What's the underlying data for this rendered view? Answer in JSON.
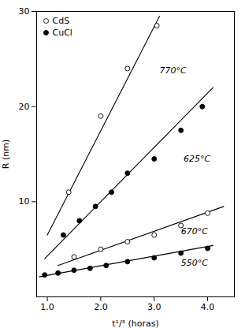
{
  "chart_data": {
    "type": "scatter",
    "xlabel": "t¹/³ (horas)",
    "ylabel": "R (nm)",
    "xlim": [
      0.8,
      4.5
    ],
    "ylim": [
      0,
      30
    ],
    "xticks": [
      1,
      2,
      3,
      4
    ],
    "yticks": [
      10,
      20,
      30
    ],
    "color": "black",
    "legend": "upper left",
    "legend_entries": [
      {
        "name": "CdS",
        "marker": "open"
      },
      {
        "name": "CuCl",
        "marker": "filled"
      }
    ],
    "series": [
      {
        "name": "CdS",
        "marker": "open",
        "x": [
          1.4,
          2.0,
          2.5,
          3.05
        ],
        "values": [
          11.0,
          19.0,
          24.0,
          28.5
        ],
        "fit": {
          "x": [
            1.0,
            3.1
          ],
          "values": [
            6.5,
            29.5
          ]
        }
      },
      {
        "name": "CuCl",
        "marker": "filled",
        "x": [
          1.3,
          1.6,
          1.9,
          2.2,
          2.5,
          3.0,
          3.5,
          3.9
        ],
        "values": [
          6.5,
          8.0,
          9.5,
          11.0,
          13.0,
          14.5,
          17.5,
          20.0
        ],
        "fit": {
          "x": [
            0.95,
            4.1
          ],
          "values": [
            4.0,
            22.0
          ]
        }
      },
      {
        "name": "CdS",
        "marker": "open",
        "x": [
          1.5,
          2.0,
          2.5,
          3.0,
          3.5,
          4.0
        ],
        "values": [
          4.2,
          5.0,
          5.8,
          6.5,
          7.5,
          8.8
        ],
        "fit": {
          "x": [
            1.2,
            4.3
          ],
          "values": [
            3.3,
            9.5
          ]
        }
      },
      {
        "name": "CuCl",
        "marker": "filled",
        "x": [
          0.95,
          1.2,
          1.5,
          1.8,
          2.1,
          2.5,
          3.0,
          3.5,
          4.0
        ],
        "values": [
          2.3,
          2.5,
          2.8,
          3.0,
          3.3,
          3.7,
          4.1,
          4.6,
          5.1
        ],
        "fit": {
          "x": [
            0.85,
            4.1
          ],
          "values": [
            2.1,
            5.4
          ]
        }
      }
    ],
    "annotations": [
      {
        "text": "770°C",
        "x": 3.1,
        "y": 23.5
      },
      {
        "text": "625°C",
        "x": 3.55,
        "y": 14.2
      },
      {
        "text": "670°C",
        "x": 3.5,
        "y": 6.6
      },
      {
        "text": "550°C",
        "x": 3.5,
        "y": 3.3
      }
    ]
  }
}
